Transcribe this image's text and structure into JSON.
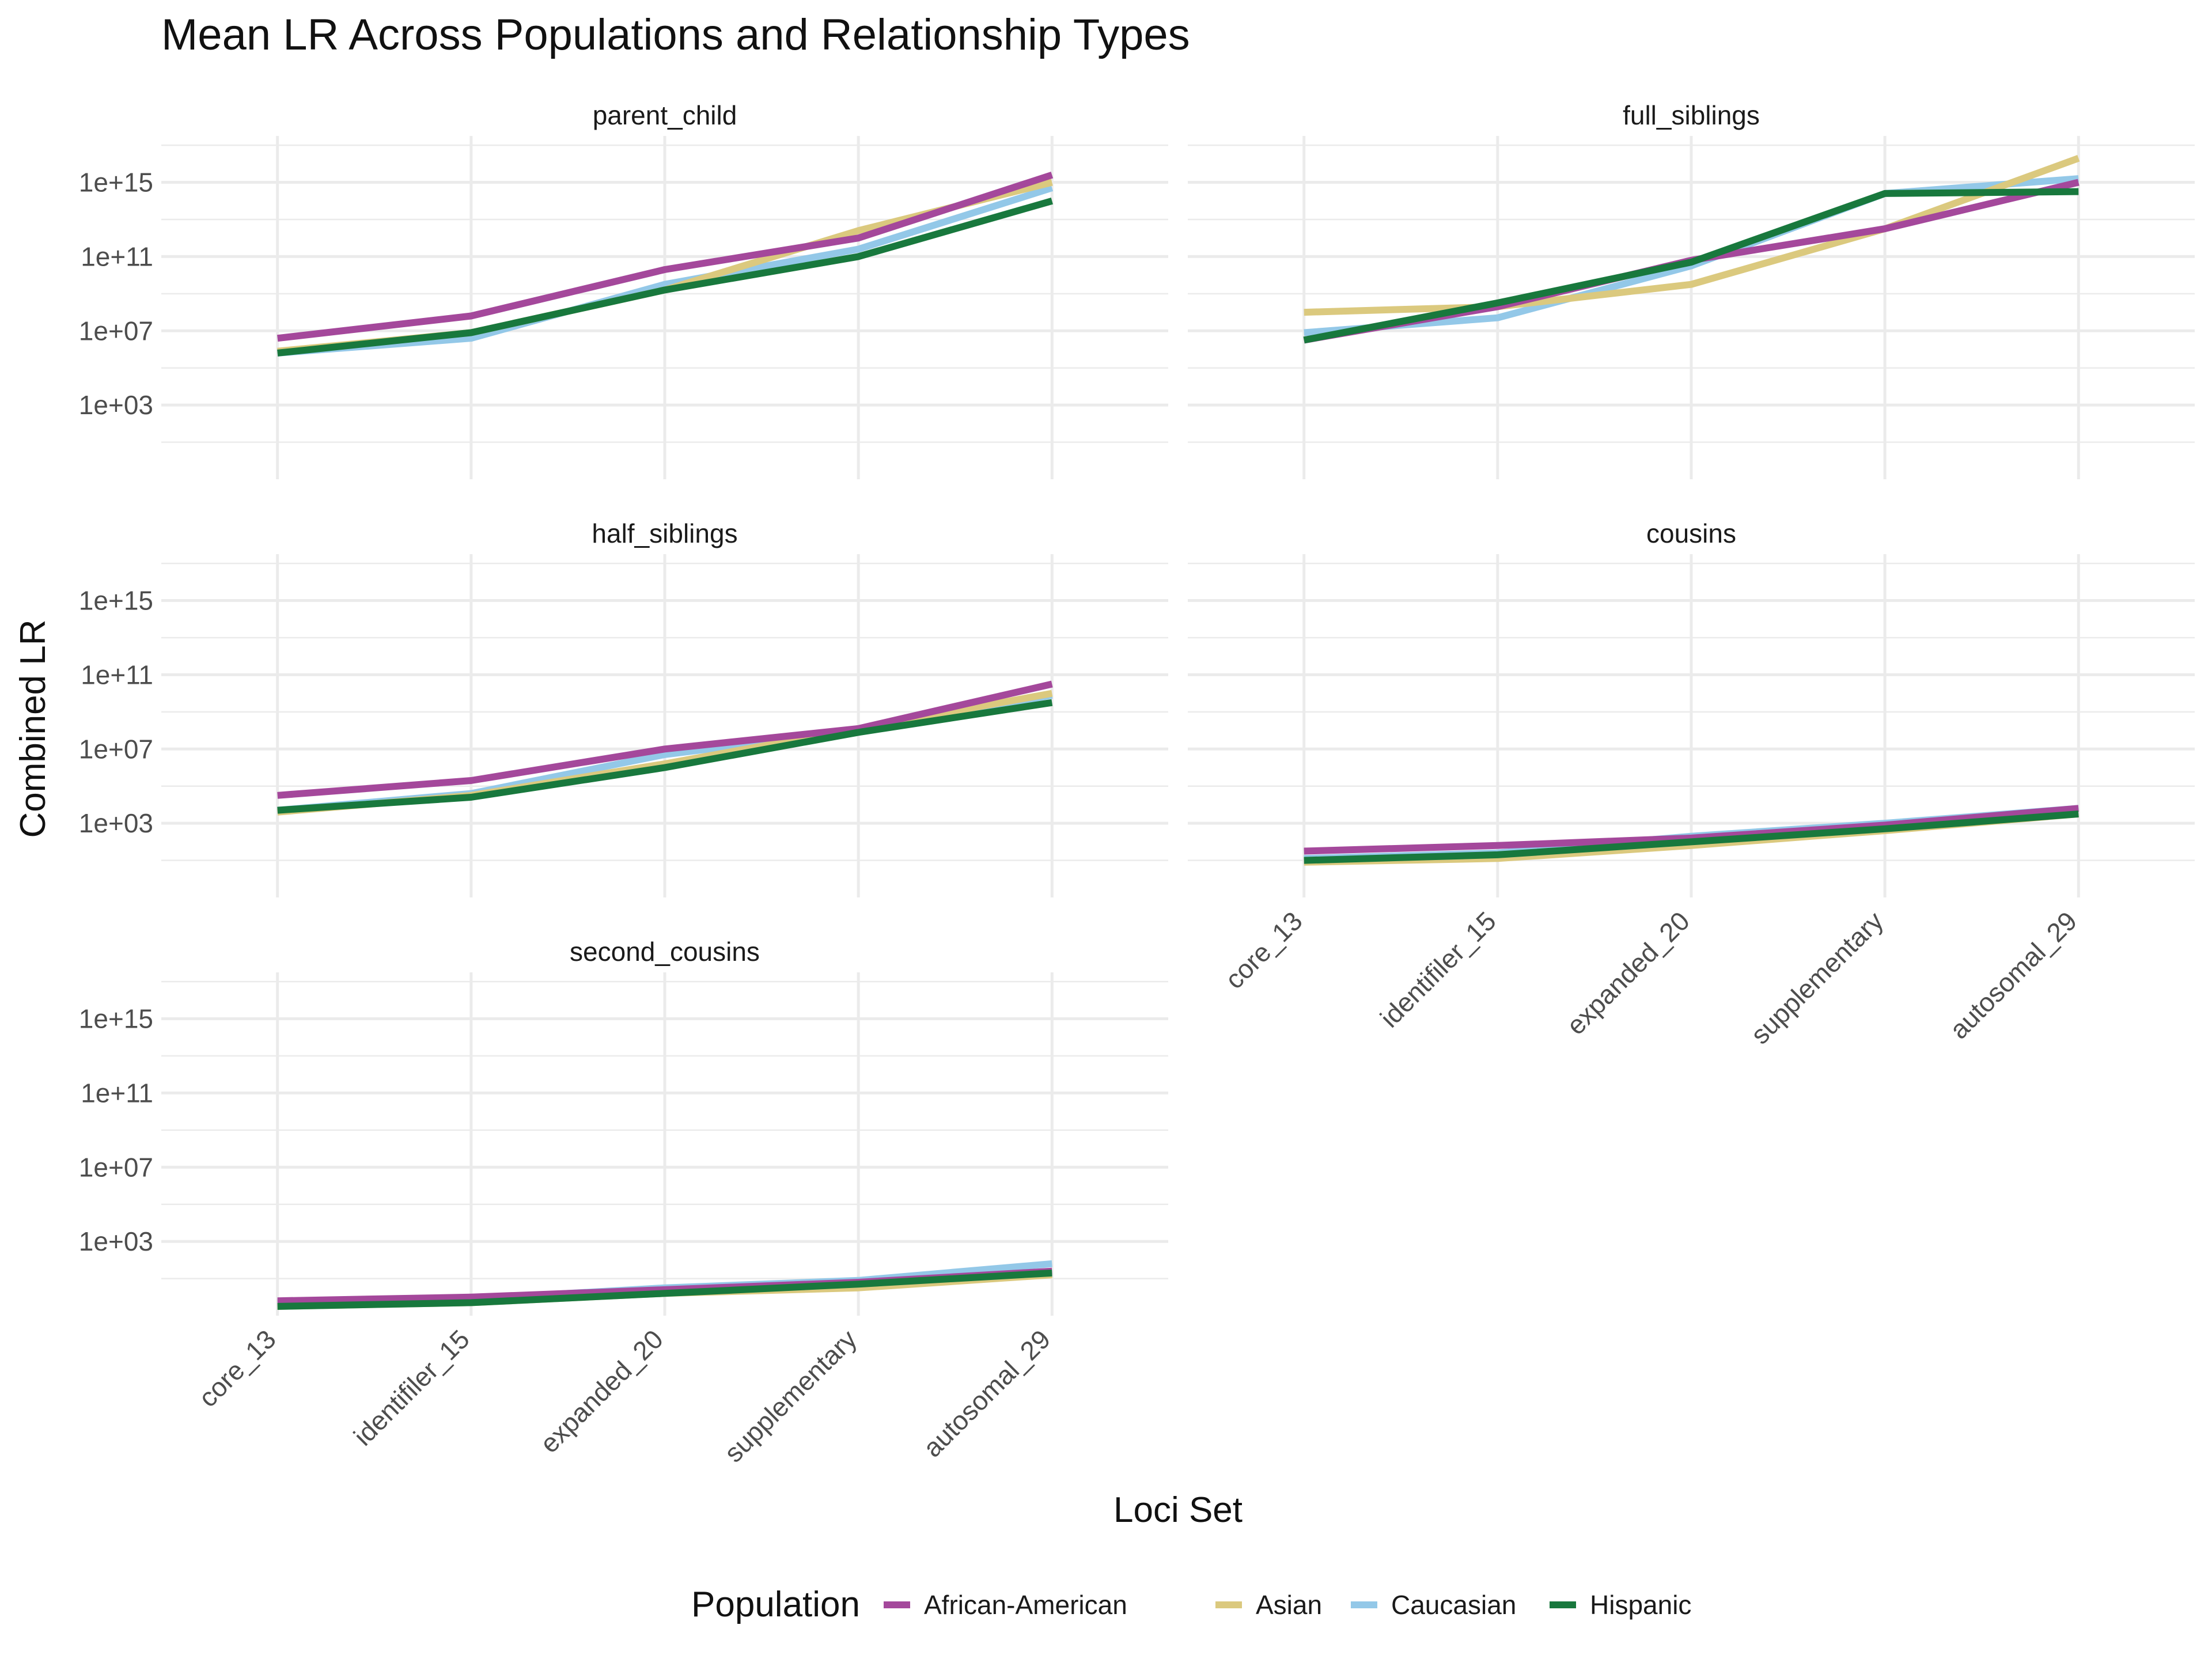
{
  "chart_data": {
    "type": "line",
    "title": "Mean LR Across Populations and Relationship Types",
    "xlabel": "Loci Set",
    "ylabel": "Combined LR",
    "y_scale": "log10",
    "ylim_log10": [
      -1,
      17.5
    ],
    "y_ticks": [
      {
        "label": "1e+03",
        "log10": 3
      },
      {
        "label": "1e+07",
        "log10": 7
      },
      {
        "label": "1e+11",
        "log10": 11
      },
      {
        "label": "1e+15",
        "log10": 15
      }
    ],
    "categories": [
      "core_13",
      "identifiler_15",
      "expanded_20",
      "supplementary",
      "autosomal_29"
    ],
    "legend": {
      "title": "Population",
      "position": "bottom",
      "entries": [
        {
          "name": "African-American",
          "color": "#A4489B"
        },
        {
          "name": "Asian",
          "color": "#DBC97E"
        },
        {
          "name": "Caucasian",
          "color": "#93C8E8"
        },
        {
          "name": "Hispanic",
          "color": "#18783D"
        }
      ]
    },
    "panels": [
      {
        "name": "parent_child",
        "series": [
          {
            "name": "Caucasian",
            "log10_values": [
              5.8,
              6.6,
              9.5,
              11.4,
              14.7
            ]
          },
          {
            "name": "Asian",
            "log10_values": [
              5.9,
              6.9,
              9.2,
              12.4,
              15.0
            ]
          },
          {
            "name": "African-American",
            "log10_values": [
              6.6,
              7.8,
              10.3,
              12.0,
              15.4
            ]
          },
          {
            "name": "Hispanic",
            "log10_values": [
              5.8,
              6.9,
              9.2,
              11.0,
              14.0
            ]
          }
        ]
      },
      {
        "name": "full_siblings",
        "series": [
          {
            "name": "African-American",
            "log10_values": [
              6.5,
              8.3,
              10.8,
              12.5,
              15.0
            ]
          },
          {
            "name": "Asian",
            "log10_values": [
              8.0,
              8.3,
              9.5,
              12.5,
              16.3
            ]
          },
          {
            "name": "Caucasian",
            "log10_values": [
              6.9,
              7.7,
              10.5,
              14.4,
              15.2
            ]
          },
          {
            "name": "Hispanic",
            "log10_values": [
              6.5,
              8.5,
              10.7,
              14.4,
              14.5
            ]
          }
        ]
      },
      {
        "name": "half_siblings",
        "series": [
          {
            "name": "African-American",
            "log10_values": [
              4.5,
              5.3,
              7.0,
              8.1,
              10.5
            ]
          },
          {
            "name": "Asian",
            "log10_values": [
              3.6,
              4.5,
              6.2,
              8.1,
              10.0
            ]
          },
          {
            "name": "Caucasian",
            "log10_values": [
              3.7,
              4.6,
              6.7,
              8.0,
              9.9
            ]
          },
          {
            "name": "Hispanic",
            "log10_values": [
              3.7,
              4.4,
              6.0,
              7.9,
              9.5
            ]
          }
        ]
      },
      {
        "name": "cousins",
        "series": [
          {
            "name": "African-American",
            "log10_values": [
              1.5,
              1.8,
              2.2,
              2.9,
              3.8
            ]
          },
          {
            "name": "Asian",
            "log10_values": [
              0.9,
              1.1,
              1.8,
              2.6,
              3.5
            ]
          },
          {
            "name": "Caucasian",
            "log10_values": [
              1.1,
              1.4,
              2.3,
              3.0,
              3.8
            ]
          },
          {
            "name": "Hispanic",
            "log10_values": [
              1.0,
              1.3,
              2.0,
              2.7,
              3.5
            ]
          }
        ]
      },
      {
        "name": "second_cousins",
        "series": [
          {
            "name": "African-American",
            "log10_values": [
              -0.2,
              0.0,
              0.4,
              0.8,
              1.4
            ]
          },
          {
            "name": "Asian",
            "log10_values": [
              -0.5,
              -0.3,
              0.2,
              0.5,
              1.2
            ]
          },
          {
            "name": "Caucasian",
            "log10_values": [
              -0.3,
              -0.1,
              0.5,
              0.9,
              1.8
            ]
          },
          {
            "name": "Hispanic",
            "log10_values": [
              -0.5,
              -0.3,
              0.2,
              0.7,
              1.3
            ]
          }
        ]
      }
    ]
  }
}
